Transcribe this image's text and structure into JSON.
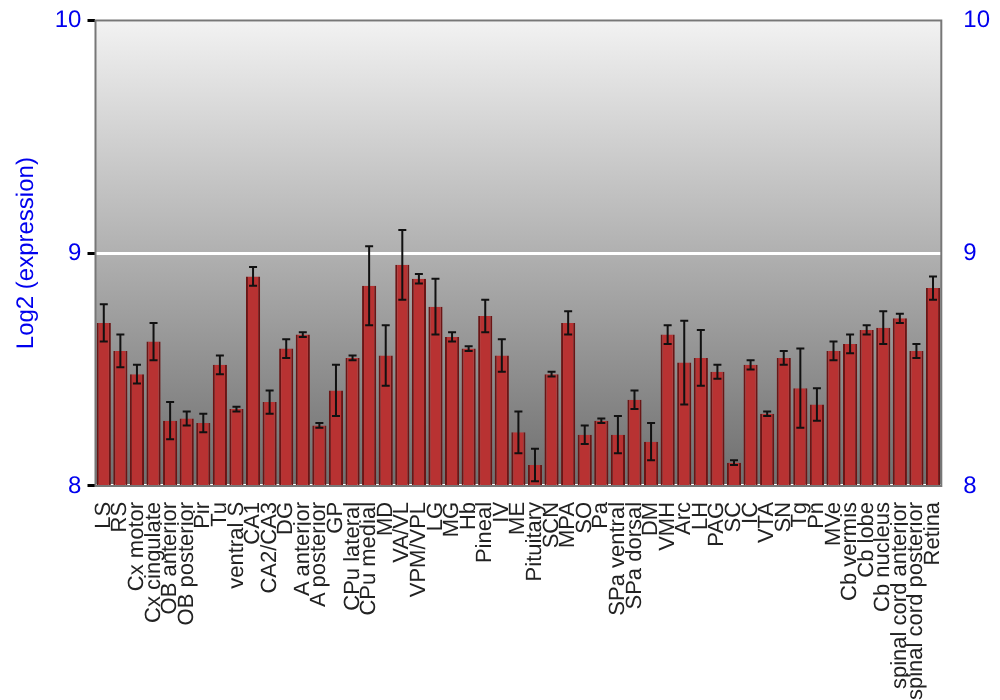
{
  "chart_data": {
    "type": "bar",
    "ylabel": "Log2 (expression)",
    "categories": [
      "LS",
      "RS",
      "Cx motor",
      "Cx cingulate",
      "OB anterior",
      "OB posterior",
      "Pir",
      "Tu",
      "ventral S",
      "CA1",
      "CA2/CA3",
      "DG",
      "A anterior",
      "A posterior",
      "GP",
      "CPu lateral",
      "CPu medial",
      "MD",
      "VA/VL",
      "VPM/VPL",
      "LG",
      "MG",
      "Hb",
      "Pineal",
      "IV",
      "ME",
      "Pituitary",
      "SCN",
      "MPA",
      "SO",
      "Pa",
      "SPa ventral",
      "SPa dorsal",
      "DM",
      "VMH",
      "Arc",
      "LH",
      "PAG",
      "SC",
      "IC",
      "VTA",
      "SN",
      "Tg",
      "Pn",
      "MVe",
      "Cb vermis",
      "Cb lobe",
      "Cb nucleus",
      "spinal cord anterior",
      "spinal cord posterior",
      "Retina"
    ],
    "values": [
      8.7,
      8.58,
      8.48,
      8.62,
      8.28,
      8.29,
      8.27,
      8.52,
      8.33,
      8.9,
      8.36,
      8.59,
      8.65,
      8.26,
      8.41,
      8.55,
      8.86,
      8.56,
      8.95,
      8.89,
      8.77,
      8.64,
      8.59,
      8.73,
      8.56,
      8.23,
      8.09,
      8.48,
      8.7,
      8.22,
      8.28,
      8.22,
      8.37,
      8.19,
      8.65,
      8.53,
      8.55,
      8.49,
      8.1,
      8.52,
      8.31,
      8.55,
      8.42,
      8.35,
      8.58,
      8.61,
      8.67,
      8.68,
      8.72,
      8.58,
      8.85
    ],
    "errors": [
      0.08,
      0.07,
      0.04,
      0.08,
      0.08,
      0.03,
      0.04,
      0.04,
      0.01,
      0.04,
      0.05,
      0.04,
      0.01,
      0.01,
      0.11,
      0.01,
      0.17,
      0.13,
      0.15,
      0.02,
      0.12,
      0.02,
      0.01,
      0.07,
      0.07,
      0.09,
      0.07,
      0.01,
      0.05,
      0.04,
      0.01,
      0.08,
      0.04,
      0.08,
      0.04,
      0.18,
      0.12,
      0.03,
      0.01,
      0.02,
      0.01,
      0.03,
      0.17,
      0.07,
      0.04,
      0.04,
      0.02,
      0.07,
      0.02,
      0.03,
      0.05
    ],
    "color": "#b83232",
    "ylim": [
      8,
      10
    ],
    "yticks": [
      8,
      9,
      10
    ],
    "y2lim": [
      8,
      10
    ],
    "y2ticks": [
      8,
      9,
      10
    ],
    "grid": "y"
  }
}
